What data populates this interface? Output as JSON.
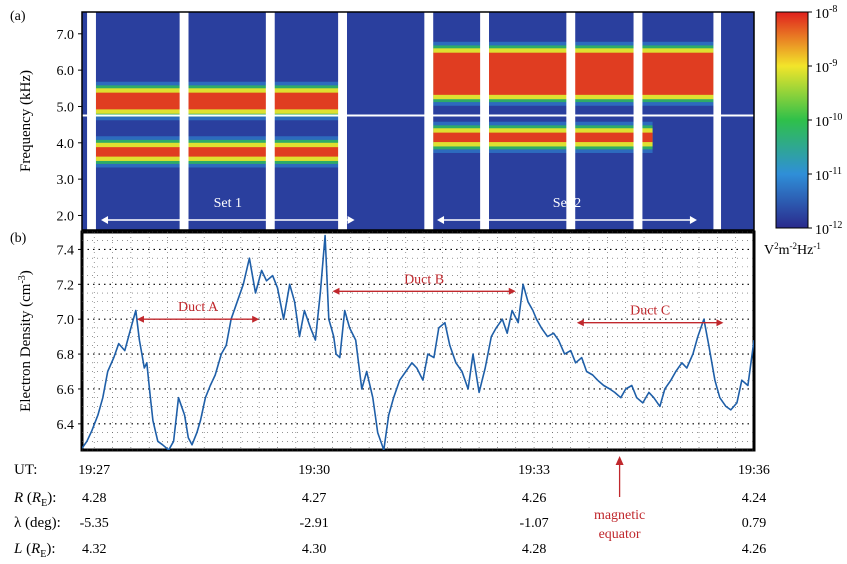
{
  "panel_labels": [
    "(a)",
    "(b)"
  ],
  "colors": {
    "spectro_bg": "#2a3f9e",
    "gap": "#ffffff",
    "density_line": "#1f5fa8",
    "duct_annotation": "#c0282d",
    "colorbar_stops": [
      "#2a2a8c",
      "#2f8fd8",
      "#2fc04a",
      "#f2e52a",
      "#e0201e"
    ]
  },
  "chart_data": [
    {
      "type": "heatmap",
      "ylabel": "Frequency (kHz)",
      "y_ticks": [
        "7.0",
        "6.0",
        "5.0",
        "4.0",
        "3.0",
        "2.0"
      ],
      "y_tick_values": [
        7.0,
        6.0,
        5.0,
        4.0,
        3.0,
        2.0
      ],
      "ylim": [
        1.6,
        7.6
      ],
      "xlim_ut": [
        "19:26:50",
        "19:35:40"
      ],
      "data_gaps_ut": [
        [
          "19:26:54",
          "19:27:01"
        ],
        [
          "19:28:07",
          "19:28:14"
        ],
        [
          "19:29:15",
          "19:29:22"
        ],
        [
          "19:30:12",
          "19:30:19"
        ],
        [
          "19:31:20",
          "19:31:27"
        ],
        [
          "19:32:04",
          "19:32:11"
        ],
        [
          "19:33:12",
          "19:33:19"
        ],
        [
          "19:34:05",
          "19:34:12"
        ],
        [
          "19:35:08",
          "19:35:14"
        ]
      ],
      "white_line_khz": 4.75,
      "bands": [
        {
          "name": "upper",
          "segments": [
            {
              "t0": "19:27:01",
              "t1": "19:30:19",
              "f_lo": 4.8,
              "f_hi": 5.5
            },
            {
              "t0": "19:31:27",
              "t1": "19:35:08",
              "f_lo": 5.2,
              "f_hi": 6.6
            }
          ]
        },
        {
          "name": "lower",
          "segments": [
            {
              "t0": "19:27:01",
              "t1": "19:30:19",
              "f_lo": 3.5,
              "f_hi": 4.0
            },
            {
              "t0": "19:31:27",
              "t1": "19:34:20",
              "f_lo": 3.9,
              "f_hi": 4.4
            }
          ]
        }
      ],
      "set_labels": [
        {
          "label": "Set 1",
          "start_ut": "19:27:05",
          "end_ut": "19:30:25"
        },
        {
          "label": "Set 2",
          "start_ut": "19:31:30",
          "end_ut": "19:34:55"
        }
      ],
      "colorbar": {
        "tick_labels": [
          {
            "base": "10",
            "exp": "-8"
          },
          {
            "base": "10",
            "exp": "-9"
          },
          {
            "base": "10",
            "exp": "-10"
          },
          {
            "base": "10",
            "exp": "-11"
          },
          {
            "base": "10",
            "exp": "-12"
          }
        ],
        "unit_parts": [
          "V",
          "2",
          "m",
          "-2",
          "Hz",
          "-1"
        ]
      }
    },
    {
      "type": "line",
      "ylabel": "Electron Density (cm⁻³)",
      "y_ticks": [
        "7.4",
        "7.2",
        "7.0",
        "6.8",
        "6.6",
        "6.4"
      ],
      "y_tick_values": [
        7.4,
        7.2,
        7.0,
        6.8,
        6.6,
        6.4
      ],
      "ylim": [
        6.25,
        7.5
      ],
      "xlim_ut": [
        "19:26:50",
        "19:36:00"
      ],
      "x_ticks": [
        "19:27",
        "19:30",
        "19:33",
        "19:36"
      ],
      "series": [
        {
          "x_ut": [
            "19:26:50",
            "19:26:54",
            "19:26:58",
            "19:27:03",
            "19:27:07",
            "19:27:11",
            "19:27:16",
            "19:27:20",
            "19:27:25",
            "19:27:30",
            "19:27:34",
            "19:27:37",
            "19:27:39",
            "19:27:41",
            "19:27:43",
            "19:27:46",
            "19:27:48",
            "19:27:52",
            "19:27:56",
            "19:28:01",
            "19:28:05",
            "19:28:09",
            "19:28:14",
            "19:28:17",
            "19:28:20",
            "19:28:24",
            "19:28:27",
            "19:28:31",
            "19:28:35",
            "19:28:39",
            "19:28:44",
            "19:28:48",
            "19:28:52",
            "19:28:58",
            "19:29:02",
            "19:29:07",
            "19:29:12",
            "19:29:17",
            "19:29:21",
            "19:29:26",
            "19:29:30",
            "19:29:35",
            "19:29:40",
            "19:29:44",
            "19:29:48",
            "19:29:52",
            "19:29:57",
            "19:30:01",
            "19:30:05",
            "19:30:09",
            "19:30:12",
            "19:30:14",
            "19:30:16",
            "19:30:18",
            "19:30:21",
            "19:30:25",
            "19:30:29",
            "19:30:34",
            "19:30:39",
            "19:30:43",
            "19:30:48",
            "19:30:52",
            "19:30:57",
            "19:31:01",
            "19:31:05",
            "19:31:10",
            "19:31:15",
            "19:31:20",
            "19:31:24",
            "19:31:29",
            "19:31:33",
            "19:31:38",
            "19:31:42",
            "19:31:47",
            "19:31:51",
            "19:31:56",
            "19:32:01",
            "19:32:06",
            "19:32:10",
            "19:32:15",
            "19:32:20",
            "19:32:25",
            "19:32:29",
            "19:32:34",
            "19:32:38",
            "19:32:42",
            "19:32:47",
            "19:32:51",
            "19:32:55",
            "19:32:59",
            "19:33:02",
            "19:33:06",
            "19:33:11",
            "19:33:16",
            "19:33:20",
            "19:33:25",
            "19:33:30",
            "19:33:34",
            "19:33:39",
            "19:33:43",
            "19:33:48",
            "19:33:52",
            "19:33:57",
            "19:34:02",
            "19:34:06",
            "19:34:11",
            "19:34:15",
            "19:34:20",
            "19:34:24",
            "19:34:29",
            "19:34:34",
            "19:34:38",
            "19:34:43",
            "19:34:47",
            "19:34:52",
            "19:34:56",
            "19:35:01",
            "19:35:05",
            "19:35:10",
            "19:35:14",
            "19:35:19",
            "19:35:23",
            "19:35:28",
            "19:35:32",
            "19:35:37",
            "19:35:41",
            "19:35:46",
            "19:35:50",
            "19:35:55",
            "19:36:00"
          ],
          "values": [
            6.26,
            6.3,
            6.36,
            6.45,
            6.55,
            6.7,
            6.78,
            6.86,
            6.82,
            6.95,
            7.05,
            6.88,
            6.8,
            6.72,
            6.75,
            6.55,
            6.42,
            6.3,
            6.28,
            6.25,
            6.3,
            6.55,
            6.45,
            6.32,
            6.28,
            6.35,
            6.42,
            6.55,
            6.62,
            6.68,
            6.8,
            6.85,
            7.0,
            7.12,
            7.2,
            7.35,
            7.15,
            7.28,
            7.22,
            7.25,
            7.18,
            7.0,
            7.2,
            7.1,
            6.9,
            7.05,
            6.95,
            6.88,
            7.15,
            7.48,
            7.0,
            6.95,
            6.9,
            6.8,
            6.78,
            7.05,
            6.95,
            6.88,
            6.6,
            6.7,
            6.55,
            6.35,
            6.25,
            6.45,
            6.55,
            6.65,
            6.7,
            6.75,
            6.72,
            6.65,
            6.8,
            6.78,
            6.95,
            6.98,
            6.85,
            6.75,
            6.7,
            6.6,
            6.8,
            6.58,
            6.72,
            6.9,
            6.95,
            7.0,
            6.92,
            7.05,
            6.98,
            7.2,
            7.1,
            7.05,
            7.0,
            6.95,
            6.9,
            6.92,
            6.88,
            6.8,
            6.82,
            6.75,
            6.78,
            6.7,
            6.68,
            6.65,
            6.62,
            6.6,
            6.58,
            6.55,
            6.6,
            6.62,
            6.55,
            6.52,
            6.58,
            6.55,
            6.5,
            6.6,
            6.65,
            6.7,
            6.75,
            6.72,
            6.8,
            6.9,
            7.0,
            6.85,
            6.65,
            6.55,
            6.5,
            6.48,
            6.52,
            6.65,
            6.62,
            6.88
          ]
        }
      ],
      "annotations": [
        {
          "label": "Duct A",
          "start_ut": "19:27:35",
          "end_ut": "19:29:15",
          "y": 7.0
        },
        {
          "label": "Duct B",
          "start_ut": "19:30:15",
          "end_ut": "19:32:45",
          "y": 7.16
        },
        {
          "label": "Duct C",
          "start_ut": "19:33:35",
          "end_ut": "19:35:35",
          "y": 6.98
        }
      ]
    }
  ],
  "ephemeris": {
    "rows": [
      {
        "label": "UT:",
        "values": [
          "19:27",
          "19:30",
          "19:33",
          "19:36"
        ]
      },
      {
        "label_parts": [
          "R",
          " (",
          "R",
          "E",
          "):"
        ],
        "values": [
          "4.28",
          "4.27",
          "4.26",
          "4.24"
        ]
      },
      {
        "label": "λ (deg):",
        "values": [
          "-5.35",
          "-2.91",
          "-1.07",
          "0.79"
        ]
      },
      {
        "label_parts": [
          "L",
          " (",
          "R",
          "E",
          "):"
        ],
        "values": [
          "4.32",
          "4.30",
          "4.28",
          "4.26"
        ]
      }
    ],
    "magnetic_equator_lines": [
      "magnetic",
      "equator"
    ],
    "magnetic_equator_ut": "19:34:10"
  }
}
